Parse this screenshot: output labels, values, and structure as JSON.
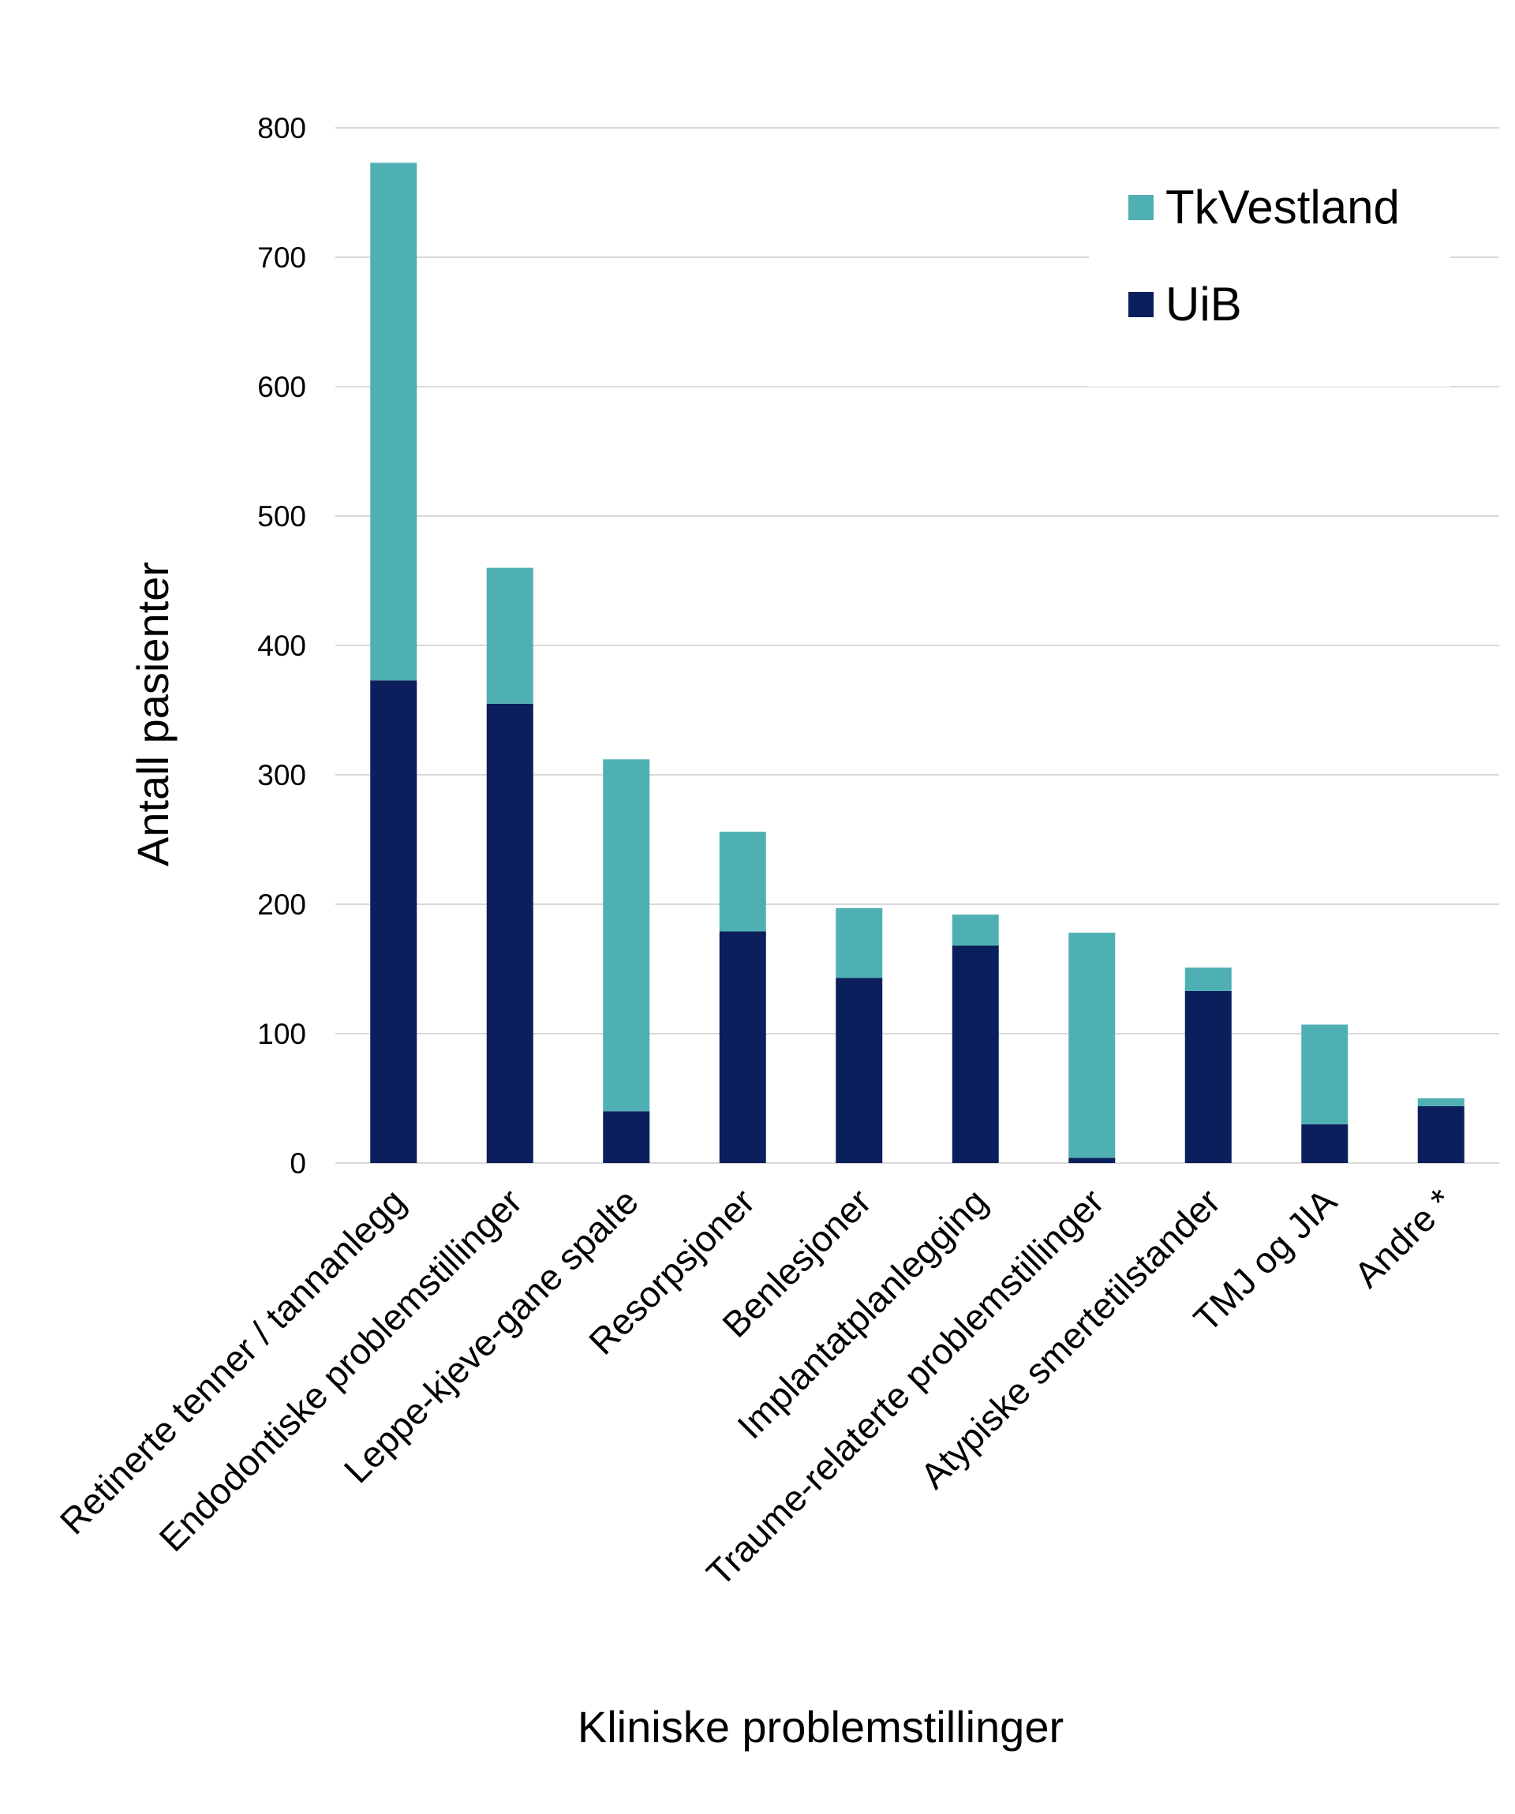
{
  "chart_data": {
    "type": "bar",
    "stacked": true,
    "categories": [
      "Retinerte tenner / tannanlegg",
      "Endodontiske problemstillinger",
      "Leppe-kjeve-gane spalte",
      "Resorpsjoner",
      "Benlesjoner",
      "Implantatplanlegging",
      "Traume-relaterte problemstillinger",
      "Atypiske smertetilstander",
      "TMJ og JIA",
      "Andre *"
    ],
    "series": [
      {
        "name": "UiB",
        "color": "#0b1f5c",
        "values": [
          373,
          355,
          40,
          179,
          143,
          168,
          4,
          133,
          30,
          44
        ]
      },
      {
        "name": "TkVestland",
        "color": "#4fb0b4",
        "values": [
          400,
          105,
          272,
          77,
          54,
          24,
          174,
          18,
          77,
          6
        ]
      }
    ],
    "xlabel": "Kliniske problemstillinger",
    "ylabel": "Antall pasienter",
    "ylim": [
      0,
      800
    ],
    "yticks": [
      0,
      100,
      200,
      300,
      400,
      500,
      600,
      700,
      800
    ],
    "grid": true,
    "legend_position": "top-right",
    "legend_order": [
      "TkVestland",
      "UiB"
    ]
  }
}
